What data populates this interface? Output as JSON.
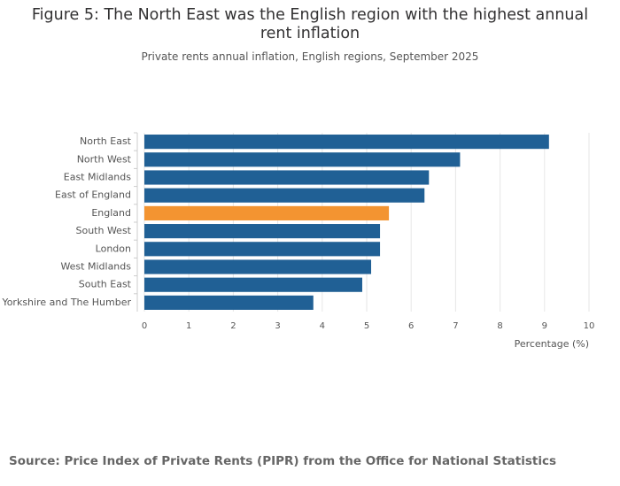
{
  "chart_data": {
    "type": "barh",
    "title": "Figure 5: The North East was the English region with the highest annual rent inflation",
    "subtitle": "Private rents annual inflation, English regions, September 2025",
    "source": "Source: Price Index of Private Rents (PIPR) from the Office for National Statistics",
    "x_label": "Percentage (%)",
    "categories": [
      "North East",
      "North West",
      "East Midlands",
      "East of England",
      "England",
      "South West",
      "London",
      "West Midlands",
      "South East",
      "Yorkshire and The Humber"
    ],
    "values": [
      9.1,
      7.1,
      6.4,
      6.3,
      5.5,
      5.3,
      5.3,
      5.1,
      4.9,
      3.8
    ],
    "colors": [
      "#206095",
      "#206095",
      "#206095",
      "#206095",
      "#f39431",
      "#206095",
      "#206095",
      "#206095",
      "#206095",
      "#206095"
    ],
    "xlim": [
      0,
      10
    ],
    "xticks": [
      0,
      1,
      2,
      3,
      4,
      5,
      6,
      7,
      8,
      9,
      10
    ],
    "grid": true
  }
}
